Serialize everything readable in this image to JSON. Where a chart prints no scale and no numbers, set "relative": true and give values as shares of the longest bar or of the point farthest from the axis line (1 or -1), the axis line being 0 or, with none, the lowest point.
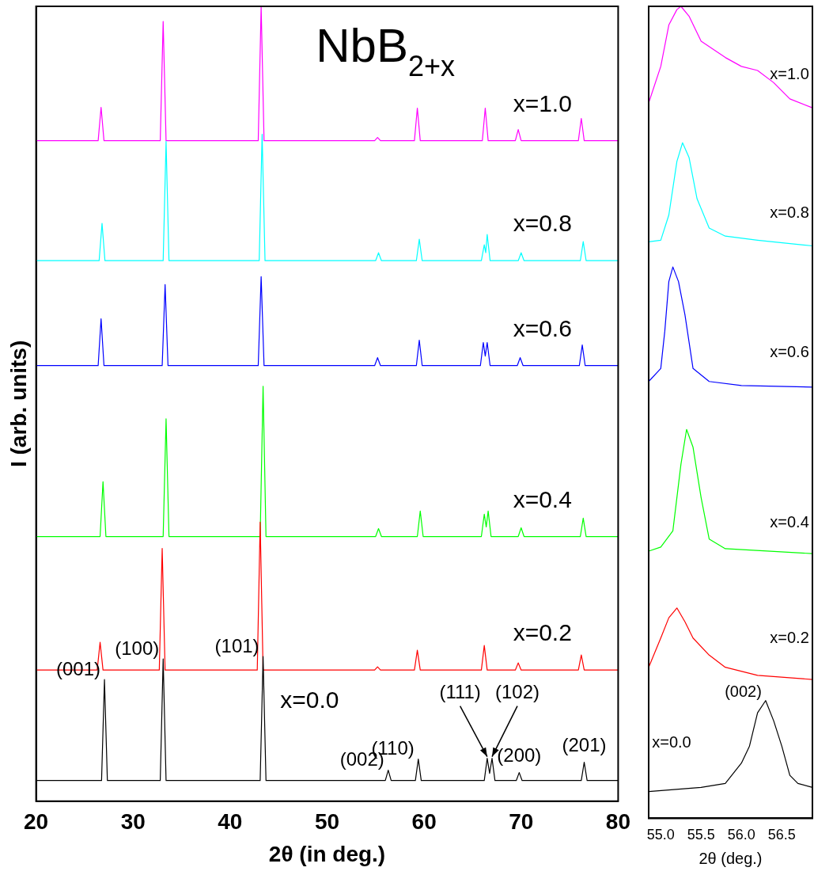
{
  "chart_data": [
    {
      "type": "line",
      "title": "NbB$_{2+x}$",
      "xlabel": "2θ (in deg.)",
      "ylabel": "I (arb. units)",
      "relative": true,
      "xlim": [
        20,
        80
      ],
      "xticks": [
        20,
        30,
        40,
        50,
        60,
        70,
        80
      ],
      "annotations": [
        {
          "text": "(001)",
          "x": 27.05,
          "y": 0.153
        },
        {
          "text": "(100)",
          "x": 33.1,
          "y": 0.179
        },
        {
          "text": "(101)",
          "x": 43.4,
          "y": 0.182
        },
        {
          "text": "(002)",
          "x": 56.3,
          "y": 0.039
        },
        {
          "text": "(110)",
          "x": 59.4,
          "y": 0.053
        },
        {
          "text": "(111)",
          "x": 66.5,
          "y": 0.054
        },
        {
          "text": "(102)",
          "x": 67.0,
          "y": 0.054
        },
        {
          "text": "(200)",
          "x": 69.8,
          "y": 0.036
        },
        {
          "text": "(201)",
          "x": 76.5,
          "y": 0.049
        }
      ],
      "series": [
        {
          "name": "x=0.0",
          "color": "#000000",
          "x": [
            20,
            26.75,
            27.05,
            27.35,
            32.8,
            33.1,
            33.4,
            43.1,
            43.4,
            43.7,
            56.0,
            56.3,
            56.6,
            59.1,
            59.4,
            59.7,
            66.2,
            66.5,
            66.75,
            67.0,
            67.3,
            69.5,
            69.8,
            70.1,
            76.2,
            76.5,
            76.8,
            80
          ],
          "values": [
            0.026,
            0.026,
            0.153,
            0.026,
            0.026,
            0.179,
            0.026,
            0.026,
            0.182,
            0.026,
            0.026,
            0.039,
            0.026,
            0.026,
            0.053,
            0.026,
            0.026,
            0.054,
            0.035,
            0.054,
            0.026,
            0.026,
            0.036,
            0.026,
            0.026,
            0.049,
            0.026,
            0.026
          ]
        },
        {
          "name": "x=0.2",
          "color": "#ff0000",
          "x": [
            20,
            26.3,
            26.6,
            26.9,
            32.7,
            33.0,
            33.3,
            42.8,
            43.1,
            43.4,
            54.9,
            55.2,
            55.5,
            59.0,
            59.3,
            59.6,
            65.9,
            66.2,
            66.5,
            69.4,
            69.7,
            70.0,
            75.9,
            76.2,
            76.5,
            80
          ],
          "values": [
            0.165,
            0.165,
            0.2,
            0.165,
            0.165,
            0.318,
            0.165,
            0.165,
            0.351,
            0.165,
            0.165,
            0.169,
            0.165,
            0.165,
            0.19,
            0.165,
            0.165,
            0.196,
            0.165,
            0.165,
            0.174,
            0.165,
            0.165,
            0.184,
            0.165,
            0.165
          ]
        },
        {
          "name": "x=0.4",
          "color": "#00ff00",
          "x": [
            20,
            26.6,
            26.9,
            27.2,
            33.1,
            33.4,
            33.7,
            43.1,
            43.4,
            43.7,
            55.0,
            55.3,
            55.6,
            59.3,
            59.6,
            59.9,
            65.9,
            66.2,
            66.4,
            66.6,
            66.9,
            69.7,
            70.0,
            70.3,
            76.1,
            76.4,
            76.7,
            80
          ],
          "values": [
            0.333,
            0.333,
            0.402,
            0.333,
            0.333,
            0.481,
            0.333,
            0.333,
            0.522,
            0.333,
            0.333,
            0.343,
            0.333,
            0.333,
            0.365,
            0.333,
            0.333,
            0.361,
            0.345,
            0.365,
            0.333,
            0.333,
            0.344,
            0.333,
            0.333,
            0.356,
            0.333,
            0.333
          ]
        },
        {
          "name": "x=0.6",
          "color": "#0000ff",
          "x": [
            20,
            26.4,
            26.7,
            27.0,
            33.0,
            33.3,
            33.6,
            42.9,
            43.2,
            43.5,
            54.9,
            55.2,
            55.5,
            59.2,
            59.5,
            59.8,
            65.8,
            66.1,
            66.3,
            66.5,
            66.8,
            69.6,
            69.9,
            70.2,
            76.0,
            76.3,
            76.6,
            80
          ],
          "values": [
            0.548,
            0.548,
            0.607,
            0.548,
            0.548,
            0.65,
            0.548,
            0.548,
            0.66,
            0.548,
            0.548,
            0.558,
            0.548,
            0.548,
            0.58,
            0.548,
            0.548,
            0.577,
            0.56,
            0.577,
            0.548,
            0.548,
            0.558,
            0.548,
            0.548,
            0.574,
            0.548,
            0.548
          ]
        },
        {
          "name": "x=0.8",
          "color": "#00ffff",
          "x": [
            20,
            26.5,
            26.8,
            27.1,
            33.1,
            33.4,
            33.7,
            43.0,
            43.3,
            43.6,
            55.0,
            55.3,
            55.6,
            59.2,
            59.5,
            59.8,
            65.9,
            66.2,
            66.35,
            66.5,
            66.8,
            69.7,
            70.0,
            70.3,
            76.1,
            76.4,
            76.7,
            80
          ],
          "values": [
            0.68,
            0.68,
            0.727,
            0.68,
            0.68,
            0.83,
            0.68,
            0.68,
            0.839,
            0.68,
            0.68,
            0.69,
            0.68,
            0.68,
            0.707,
            0.68,
            0.68,
            0.7,
            0.69,
            0.713,
            0.68,
            0.68,
            0.69,
            0.68,
            0.68,
            0.704,
            0.68,
            0.68
          ]
        },
        {
          "name": "x=1.0",
          "color": "#ff00ff",
          "x": [
            20,
            26.4,
            26.7,
            27.0,
            32.8,
            33.1,
            33.4,
            42.9,
            43.2,
            43.5,
            54.9,
            55.2,
            55.5,
            59.0,
            59.3,
            59.6,
            66.0,
            66.3,
            66.6,
            69.4,
            69.7,
            70.0,
            75.9,
            76.2,
            76.5,
            80
          ],
          "values": [
            0.831,
            0.831,
            0.873,
            0.831,
            0.831,
            0.981,
            0.831,
            0.831,
            1,
            0.831,
            0.831,
            0.835,
            0.831,
            0.831,
            0.872,
            0.831,
            0.831,
            0.872,
            0.831,
            0.831,
            0.845,
            0.831,
            0.831,
            0.859,
            0.831,
            0.831
          ]
        }
      ]
    },
    {
      "type": "line",
      "xlabel": "2θ (deg.)",
      "relative": true,
      "xlim": [
        54.85,
        56.88
      ],
      "xticks": [
        {
          "value": 55,
          "label": "55.0"
        },
        55.5,
        {
          "value": 56,
          "label": "56.0"
        },
        56.5
      ],
      "annotations": [
        {
          "text": "(002)",
          "x": 56.3,
          "y": 0.145
        }
      ],
      "series": [
        {
          "name": "x=0.0",
          "color": "#000000",
          "x": [
            54.85,
            55.5,
            55.8,
            56.0,
            56.1,
            56.2,
            56.3,
            56.4,
            56.5,
            56.6,
            56.7,
            56.88
          ],
          "values": [
            0.033,
            0.038,
            0.043,
            0.068,
            0.089,
            0.13,
            0.145,
            0.12,
            0.089,
            0.053,
            0.043,
            0.038
          ]
        },
        {
          "name": "x=0.2",
          "color": "#ff0000",
          "x": [
            54.85,
            55.0,
            55.1,
            55.2,
            55.3,
            55.4,
            55.6,
            55.8,
            56.2,
            56.88
          ],
          "values": [
            0.186,
            0.222,
            0.247,
            0.259,
            0.242,
            0.222,
            0.201,
            0.186,
            0.176,
            0.171
          ]
        },
        {
          "name": "x=0.4",
          "color": "#00ff00",
          "x": [
            54.85,
            55.0,
            55.15,
            55.25,
            55.32,
            55.4,
            55.5,
            55.6,
            55.8,
            56.88
          ],
          "values": [
            0.329,
            0.334,
            0.354,
            0.436,
            0.479,
            0.457,
            0.395,
            0.344,
            0.332,
            0.326
          ]
        },
        {
          "name": "x=0.6",
          "color": "#0000ff",
          "x": [
            54.85,
            55.0,
            55.05,
            55.1,
            55.15,
            55.22,
            55.3,
            55.4,
            55.6,
            56.0,
            56.88
          ],
          "values": [
            0.538,
            0.554,
            0.6,
            0.661,
            0.679,
            0.661,
            0.62,
            0.554,
            0.538,
            0.533,
            0.531
          ]
        },
        {
          "name": "x=0.8",
          "color": "#00ffff",
          "x": [
            54.85,
            55.0,
            55.1,
            55.2,
            55.27,
            55.35,
            55.45,
            55.6,
            55.8,
            56.2,
            56.88
          ],
          "values": [
            0.71,
            0.712,
            0.743,
            0.809,
            0.832,
            0.814,
            0.763,
            0.727,
            0.717,
            0.712,
            0.705
          ]
        },
        {
          "name": "x=1.0",
          "color": "#ff00ff",
          "x": [
            54.85,
            55.0,
            55.1,
            55.2,
            55.25,
            55.35,
            55.5,
            55.8,
            56.0,
            56.2,
            56.4,
            56.6,
            56.88
          ],
          "values": [
            0.881,
            0.926,
            0.977,
            0.996,
            1,
            0.988,
            0.957,
            0.937,
            0.926,
            0.921,
            0.906,
            0.886,
            0.875
          ]
        }
      ]
    }
  ]
}
